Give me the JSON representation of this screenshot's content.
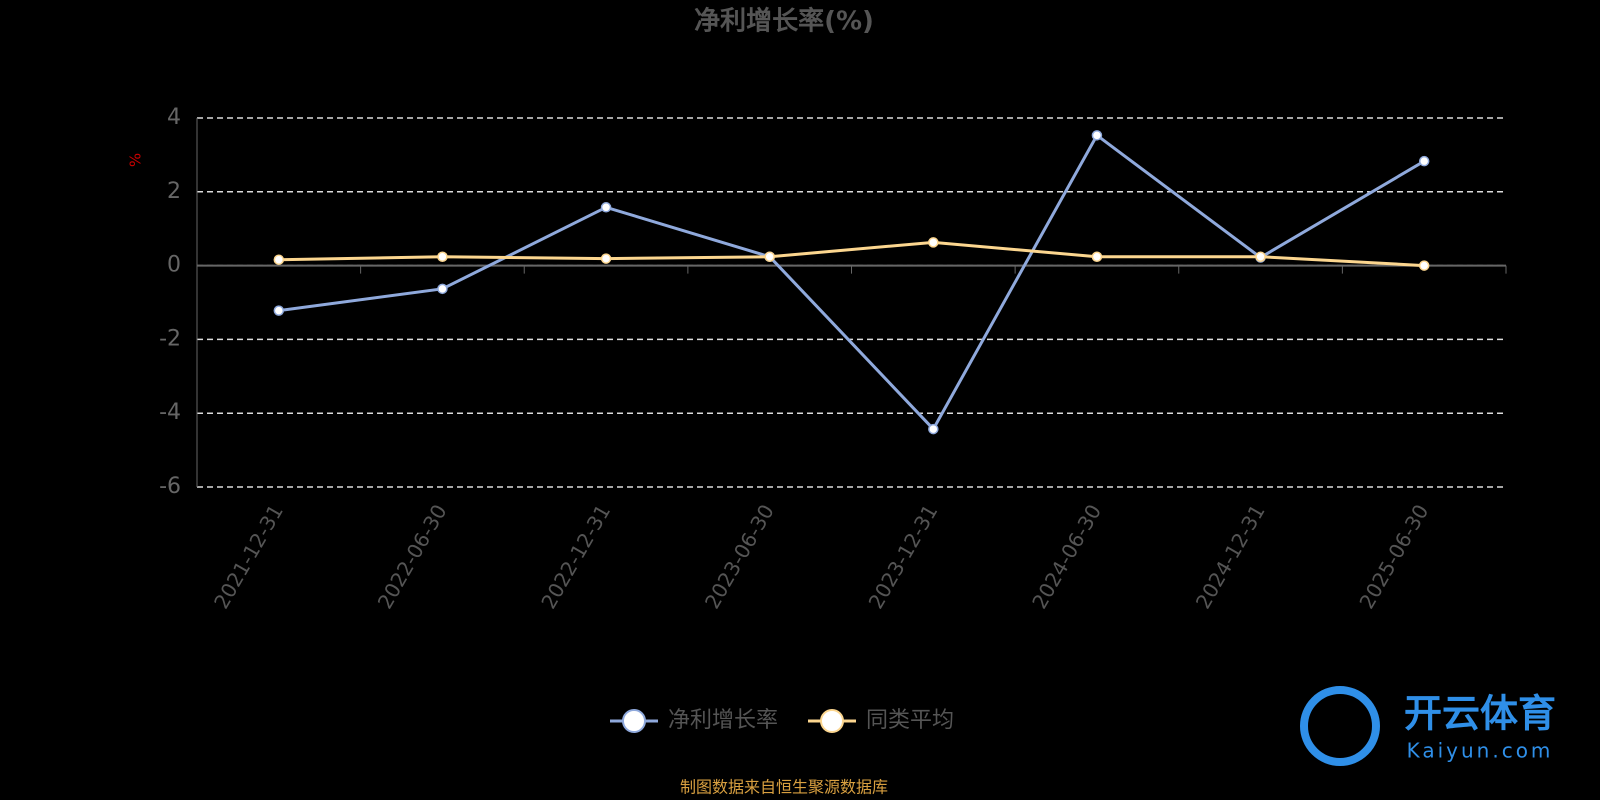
{
  "chart_data": {
    "type": "line",
    "title": "净利增长率(%)",
    "y_label": "%",
    "categories": [
      "2021-12-31",
      "2022-06-30",
      "2022-12-31",
      "2023-06-30",
      "2023-12-31",
      "2024-06-30",
      "2024-12-31",
      "2025-06-30"
    ],
    "series": [
      {
        "name": "净利增长率",
        "color": "#8fa9dc",
        "values": [
          -1.22,
          -0.63,
          1.58,
          0.24,
          -4.43,
          3.53,
          0.22,
          2.83
        ]
      },
      {
        "name": "同类平均",
        "color": "#fcd68f",
        "values": [
          0.16,
          0.24,
          0.19,
          0.24,
          0.63,
          0.24,
          0.24,
          0.0
        ]
      }
    ],
    "ylim": [
      -6,
      4
    ],
    "yticks": [
      -6,
      -4,
      -2,
      0,
      2,
      4
    ],
    "grid": true,
    "source": "制图数据来自恒生聚源数据库",
    "watermark": {
      "name": "开云体育",
      "url": "Kaiyun.com"
    }
  }
}
